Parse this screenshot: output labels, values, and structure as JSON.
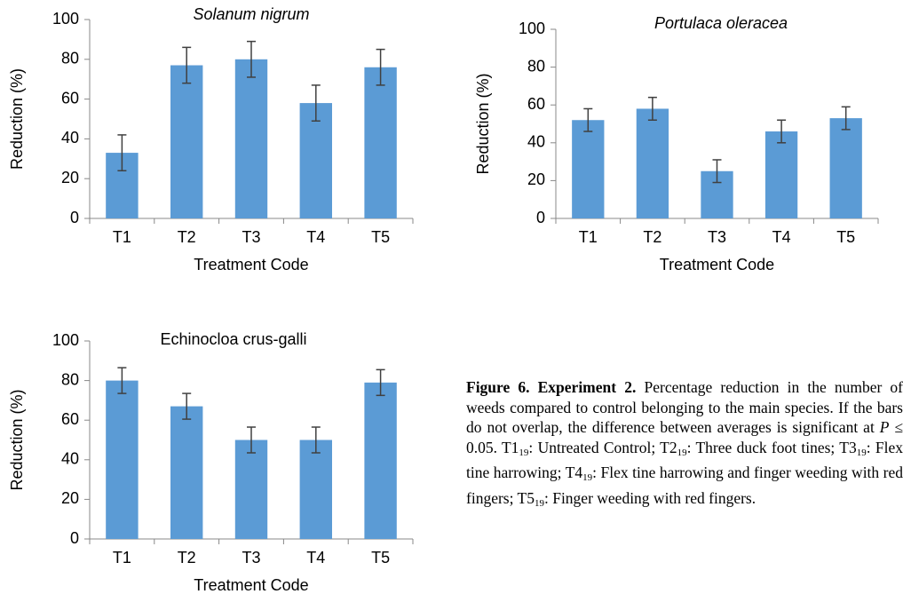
{
  "chart_data": [
    {
      "type": "bar",
      "title": "Solanum nigrum",
      "title_style": "italic",
      "xlabel": "Treatment Code",
      "ylabel": "Reduction (%)",
      "categories": [
        "T1",
        "T2",
        "T3",
        "T4",
        "T5"
      ],
      "values": [
        33,
        77,
        80,
        58,
        76
      ],
      "errors": [
        9,
        9,
        9,
        9,
        9
      ],
      "color": "#5b9bd5",
      "error_color": "#404040",
      "ylim": [
        0,
        100
      ],
      "yticks": [
        0,
        20,
        40,
        60,
        80,
        100
      ]
    },
    {
      "type": "bar",
      "title": "Portulaca oleracea",
      "title_style": "italic",
      "xlabel": "Treatment Code",
      "ylabel": "Reduction (%)",
      "categories": [
        "T1",
        "T2",
        "T3",
        "T4",
        "T5"
      ],
      "values": [
        52,
        58,
        25,
        46,
        53
      ],
      "errors": [
        6,
        6,
        6,
        6,
        6
      ],
      "color": "#5b9bd5",
      "error_color": "#404040",
      "ylim": [
        0,
        100
      ],
      "yticks": [
        0,
        20,
        40,
        60,
        80,
        100
      ]
    },
    {
      "type": "bar",
      "title": "Echinocloa crus-galli",
      "title_style": "normal",
      "xlabel": "Treatment Code",
      "ylabel": "Reduction (%)",
      "categories": [
        "T1",
        "T2",
        "T3",
        "T4",
        "T5"
      ],
      "values": [
        80,
        67,
        50,
        50,
        79
      ],
      "errors": [
        6.5,
        6.5,
        6.5,
        6.5,
        6.5
      ],
      "color": "#5b9bd5",
      "error_color": "#404040",
      "ylim": [
        0,
        100
      ],
      "yticks": [
        0,
        20,
        40,
        60,
        80,
        100
      ]
    }
  ],
  "caption": [
    {
      "text": "Figure 6. Experiment 2.",
      "style": "bold"
    },
    {
      "text": " Percentage reduction in the number of weeds compared to control belonging to the main species. If the bars do not overlap, the difference between averages is significant at ",
      "style": "normal"
    },
    {
      "text": "P",
      "style": "italic"
    },
    {
      "text": " ≤ 0.05. T1",
      "style": "normal"
    },
    {
      "text": "19",
      "style": "sub"
    },
    {
      "text": ": Untreated Control; T2",
      "style": "normal"
    },
    {
      "text": "19",
      "style": "sub"
    },
    {
      "text": ": Three duck foot tines; T3",
      "style": "normal"
    },
    {
      "text": "19",
      "style": "sub"
    },
    {
      "text": ": Flex tine harrowing; T4",
      "style": "normal"
    },
    {
      "text": "19",
      "style": "sub"
    },
    {
      "text": ": Flex tine harrowing and finger weeding with red fingers; T5",
      "style": "normal"
    },
    {
      "text": "19",
      "style": "sub"
    },
    {
      "text": ": Finger weeding with red fingers.",
      "style": "normal"
    }
  ]
}
